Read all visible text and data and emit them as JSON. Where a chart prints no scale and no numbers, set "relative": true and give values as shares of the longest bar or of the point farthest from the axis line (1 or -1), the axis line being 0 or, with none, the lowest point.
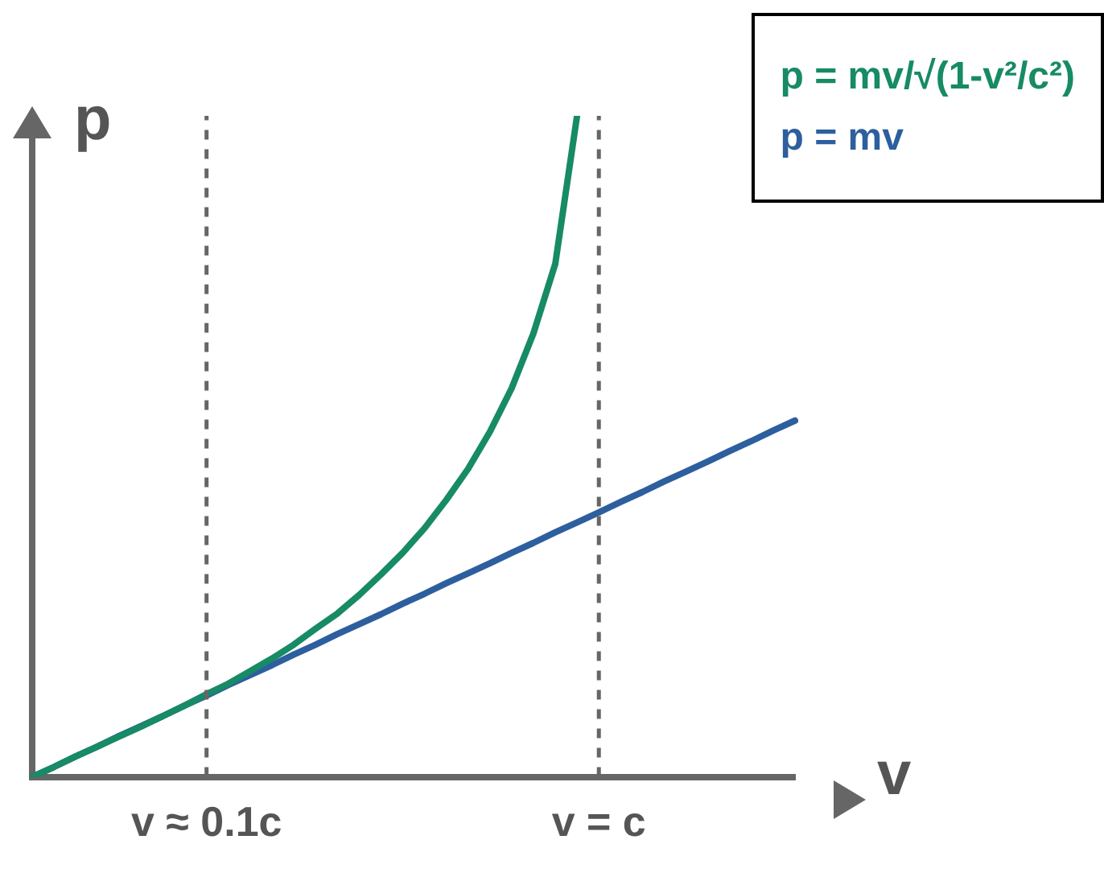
{
  "chart_data": {
    "type": "line",
    "relative": true,
    "xlabel": "v",
    "ylabel": "p",
    "legend": "top right",
    "grid": false,
    "marker": "none",
    "line_style": "solid",
    "categories": [
      null,
      null,
      null,
      null,
      null,
      null,
      null,
      null,
      "v ≈ 0.1c",
      null,
      null,
      null,
      null,
      null,
      null,
      null,
      null,
      null,
      null,
      null,
      null,
      null,
      null,
      null,
      null,
      null,
      "v = c",
      null,
      null,
      null,
      null,
      null,
      null,
      null,
      null,
      null
    ],
    "series": [
      {
        "name": "p = mv/√(1-v²/c²)",
        "color": "#178a66",
        "values": [
          0,
          0.015,
          0.031,
          0.046,
          0.061,
          0.076,
          0.092,
          0.108,
          0.125,
          0.141,
          0.16,
          0.179,
          0.2,
          0.224,
          0.247,
          0.275,
          0.306,
          0.339,
          0.376,
          0.419,
          0.466,
          0.522,
          0.588,
          0.671,
          0.776,
          1,
          null,
          null,
          null,
          null,
          null,
          null,
          null,
          null,
          null,
          null
        ]
      },
      {
        "name": "p = mv",
        "color": "#2d5f9e",
        "values": [
          0,
          0.015,
          0.031,
          0.046,
          0.062,
          0.077,
          0.092,
          0.108,
          0.123,
          0.139,
          0.154,
          0.169,
          0.185,
          0.2,
          0.216,
          0.231,
          0.246,
          0.262,
          0.277,
          0.293,
          0.308,
          0.323,
          0.339,
          0.354,
          0.37,
          0.385,
          0.4,
          0.416,
          0.431,
          0.447,
          0.462,
          0.477,
          0.493,
          0.508,
          0.524,
          0.539
        ]
      }
    ],
    "ref_lines": [
      {
        "axis": "x",
        "value": "v ≈ 0.1c",
        "color": "#666666",
        "line_style": "dashed"
      },
      {
        "axis": "x",
        "value": "v = c",
        "color": "#666666",
        "line_style": "dashed"
      }
    ]
  }
}
